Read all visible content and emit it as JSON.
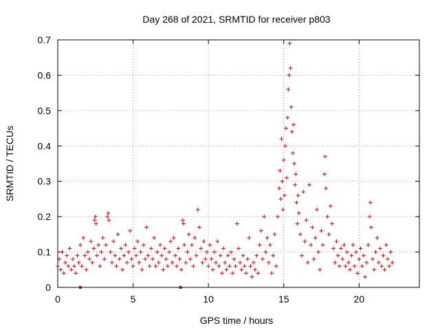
{
  "chart_data": {
    "type": "scatter",
    "title": "Day 268 of 2021, SRMTID for receiver p803",
    "xlabel": "GPS time / hours",
    "ylabel": "SRMTID / TECUs",
    "xlim": [
      0,
      24
    ],
    "ylim": [
      0,
      0.7
    ],
    "x_ticks": [
      0,
      5,
      10,
      15,
      20
    ],
    "x_tick_labels": [
      "0",
      "5",
      "10",
      "15",
      "20"
    ],
    "y_ticks": [
      0,
      0.1,
      0.2,
      0.3,
      0.4,
      0.5,
      0.6,
      0.7
    ],
    "y_tick_labels": [
      "0",
      "0.1",
      "0.2",
      "0.3",
      "0.4",
      "0.5",
      "0.6",
      "0.7"
    ],
    "grid": true,
    "marker": "+",
    "color": "#dd0000",
    "series": [
      {
        "name": "SRMTID",
        "points": [
          [
            0.0,
            0.06
          ],
          [
            0.1,
            0.08
          ],
          [
            0.2,
            0.05
          ],
          [
            0.3,
            0.1
          ],
          [
            0.4,
            0.04
          ],
          [
            0.5,
            0.07
          ],
          [
            0.6,
            0.09
          ],
          [
            0.7,
            0.06
          ],
          [
            0.8,
            0.11
          ],
          [
            0.9,
            0.05
          ],
          [
            1.0,
            0.08
          ],
          [
            1.1,
            0.06
          ],
          [
            1.2,
            0.04
          ],
          [
            1.3,
            0.09
          ],
          [
            1.4,
            0.07
          ],
          [
            1.5,
            0.12
          ],
          [
            1.6,
            0.06
          ],
          [
            1.7,
            0.14
          ],
          [
            1.8,
            0.09
          ],
          [
            1.9,
            0.05
          ],
          [
            2.0,
            0.1
          ],
          [
            2.1,
            0.08
          ],
          [
            2.2,
            0.13
          ],
          [
            2.3,
            0.07
          ],
          [
            2.4,
            0.11
          ],
          [
            2.45,
            0.19
          ],
          [
            2.5,
            0.2
          ],
          [
            2.55,
            0.18
          ],
          [
            2.6,
            0.09
          ],
          [
            2.7,
            0.12
          ],
          [
            2.8,
            0.06
          ],
          [
            2.9,
            0.1
          ],
          [
            3.0,
            0.14
          ],
          [
            3.1,
            0.08
          ],
          [
            3.2,
            0.12
          ],
          [
            3.3,
            0.2
          ],
          [
            3.35,
            0.21
          ],
          [
            3.4,
            0.19
          ],
          [
            3.5,
            0.1
          ],
          [
            3.6,
            0.07
          ],
          [
            3.7,
            0.13
          ],
          [
            3.8,
            0.09
          ],
          [
            3.9,
            0.06
          ],
          [
            4.0,
            0.15
          ],
          [
            4.1,
            0.08
          ],
          [
            4.2,
            0.11
          ],
          [
            4.3,
            0.05
          ],
          [
            4.4,
            0.09
          ],
          [
            4.5,
            0.12
          ],
          [
            4.6,
            0.07
          ],
          [
            4.7,
            0.1
          ],
          [
            4.8,
            0.16
          ],
          [
            4.9,
            0.08
          ],
          [
            5.0,
            0.06
          ],
          [
            5.1,
            0.11
          ],
          [
            5.2,
            0.09
          ],
          [
            5.3,
            0.13
          ],
          [
            5.4,
            0.07
          ],
          [
            5.5,
            0.1
          ],
          [
            5.6,
            0.05
          ],
          [
            5.7,
            0.12
          ],
          [
            5.8,
            0.08
          ],
          [
            5.9,
            0.17
          ],
          [
            6.0,
            0.09
          ],
          [
            6.1,
            0.06
          ],
          [
            6.2,
            0.11
          ],
          [
            6.3,
            0.08
          ],
          [
            6.4,
            0.14
          ],
          [
            6.5,
            0.06
          ],
          [
            6.6,
            0.1
          ],
          [
            6.7,
            0.07
          ],
          [
            6.8,
            0.12
          ],
          [
            6.9,
            0.09
          ],
          [
            7.0,
            0.05
          ],
          [
            7.1,
            0.11
          ],
          [
            7.2,
            0.08
          ],
          [
            7.3,
            0.06
          ],
          [
            7.4,
            0.1
          ],
          [
            7.5,
            0.13
          ],
          [
            7.6,
            0.07
          ],
          [
            7.7,
            0.14
          ],
          [
            7.8,
            0.09
          ],
          [
            7.9,
            0.06
          ],
          [
            8.0,
            0.11
          ],
          [
            8.1,
            0.08
          ],
          [
            8.2,
            0.05
          ],
          [
            8.3,
            0.19
          ],
          [
            8.35,
            0.18
          ],
          [
            8.4,
            0.12
          ],
          [
            8.5,
            0.07
          ],
          [
            8.6,
            0.1
          ],
          [
            8.7,
            0.15
          ],
          [
            8.8,
            0.08
          ],
          [
            8.9,
            0.12
          ],
          [
            9.0,
            0.06
          ],
          [
            9.1,
            0.14
          ],
          [
            9.2,
            0.09
          ],
          [
            9.3,
            0.22
          ],
          [
            9.4,
            0.17
          ],
          [
            9.5,
            0.11
          ],
          [
            9.6,
            0.07
          ],
          [
            9.7,
            0.13
          ],
          [
            9.8,
            0.08
          ],
          [
            9.9,
            0.1
          ],
          [
            10.0,
            0.06
          ],
          [
            10.1,
            0.12
          ],
          [
            10.2,
            0.08
          ],
          [
            10.3,
            0.05
          ],
          [
            10.4,
            0.1
          ],
          [
            10.5,
            0.07
          ],
          [
            10.6,
            0.13
          ],
          [
            10.7,
            0.06
          ],
          [
            10.8,
            0.09
          ],
          [
            10.9,
            0.04
          ],
          [
            11.0,
            0.11
          ],
          [
            11.1,
            0.07
          ],
          [
            11.2,
            0.05
          ],
          [
            11.3,
            0.09
          ],
          [
            11.4,
            0.06
          ],
          [
            11.5,
            0.1
          ],
          [
            11.6,
            0.04
          ],
          [
            11.7,
            0.08
          ],
          [
            11.8,
            0.06
          ],
          [
            11.9,
            0.18
          ],
          [
            12.0,
            0.11
          ],
          [
            12.1,
            0.07
          ],
          [
            12.2,
            0.05
          ],
          [
            12.3,
            0.09
          ],
          [
            12.4,
            0.06
          ],
          [
            12.5,
            0.04
          ],
          [
            12.6,
            0.08
          ],
          [
            12.7,
            0.14
          ],
          [
            12.8,
            0.06
          ],
          [
            12.9,
            0.03
          ],
          [
            13.0,
            0.07
          ],
          [
            13.1,
            0.05
          ],
          [
            13.2,
            0.09
          ],
          [
            13.3,
            0.04
          ],
          [
            13.4,
            0.12
          ],
          [
            13.5,
            0.16
          ],
          [
            13.6,
            0.08
          ],
          [
            13.7,
            0.2
          ],
          [
            13.8,
            0.1
          ],
          [
            13.9,
            0.14
          ],
          [
            14.0,
            0.07
          ],
          [
            14.1,
            0.12
          ],
          [
            14.2,
            0.04
          ],
          [
            14.3,
            0.09
          ],
          [
            14.4,
            0.15
          ],
          [
            14.5,
            0.06
          ],
          [
            14.6,
            0.2
          ],
          [
            14.7,
            0.28
          ],
          [
            14.75,
            0.33
          ],
          [
            14.8,
            0.25
          ],
          [
            14.85,
            0.42
          ],
          [
            14.9,
            0.3
          ],
          [
            14.95,
            0.22
          ],
          [
            15.0,
            0.36
          ],
          [
            15.05,
            0.26
          ],
          [
            15.1,
            0.4
          ],
          [
            15.15,
            0.45
          ],
          [
            15.2,
            0.31
          ],
          [
            15.25,
            0.48
          ],
          [
            15.3,
            0.56
          ],
          [
            15.35,
            0.6
          ],
          [
            15.4,
            0.69
          ],
          [
            15.45,
            0.62
          ],
          [
            15.5,
            0.51
          ],
          [
            15.55,
            0.44
          ],
          [
            15.6,
            0.38
          ],
          [
            15.65,
            0.46
          ],
          [
            15.7,
            0.35
          ],
          [
            15.75,
            0.29
          ],
          [
            15.8,
            0.32
          ],
          [
            15.85,
            0.24
          ],
          [
            15.9,
            0.18
          ],
          [
            15.95,
            0.26
          ],
          [
            16.0,
            0.21
          ],
          [
            16.1,
            0.15
          ],
          [
            16.2,
            0.09
          ],
          [
            16.3,
            0.27
          ],
          [
            16.4,
            0.13
          ],
          [
            16.5,
            0.19
          ],
          [
            16.6,
            0.07
          ],
          [
            16.7,
            0.29
          ],
          [
            16.8,
            0.12
          ],
          [
            16.9,
            0.17
          ],
          [
            17.0,
            0.08
          ],
          [
            17.1,
            0.14
          ],
          [
            17.2,
            0.22
          ],
          [
            17.3,
            0.1
          ],
          [
            17.4,
            0.05
          ],
          [
            17.5,
            0.16
          ],
          [
            17.6,
            0.12
          ],
          [
            17.7,
            0.32
          ],
          [
            17.75,
            0.37
          ],
          [
            17.8,
            0.28
          ],
          [
            17.9,
            0.2
          ],
          [
            18.0,
            0.15
          ],
          [
            18.1,
            0.23
          ],
          [
            18.2,
            0.18
          ],
          [
            18.3,
            0.11
          ],
          [
            18.4,
            0.07
          ],
          [
            18.5,
            0.13
          ],
          [
            18.6,
            0.09
          ],
          [
            18.7,
            0.06
          ],
          [
            18.8,
            0.11
          ],
          [
            18.9,
            0.08
          ],
          [
            19.0,
            0.12
          ],
          [
            19.1,
            0.06
          ],
          [
            19.2,
            0.1
          ],
          [
            19.3,
            0.07
          ],
          [
            19.4,
            0.05
          ],
          [
            19.5,
            0.09
          ],
          [
            19.6,
            0.12
          ],
          [
            19.7,
            0.06
          ],
          [
            19.8,
            0.1
          ],
          [
            19.9,
            0.04
          ],
          [
            20.0,
            0.08
          ],
          [
            20.1,
            0.11
          ],
          [
            20.2,
            0.06
          ],
          [
            20.3,
            0.09
          ],
          [
            20.4,
            0.03
          ],
          [
            20.5,
            0.07
          ],
          [
            20.6,
            0.12
          ],
          [
            20.7,
            0.2
          ],
          [
            20.75,
            0.24
          ],
          [
            20.8,
            0.17
          ],
          [
            20.9,
            0.08
          ],
          [
            21.0,
            0.05
          ],
          [
            21.1,
            0.1
          ],
          [
            21.2,
            0.14
          ],
          [
            21.3,
            0.07
          ],
          [
            21.4,
            0.11
          ],
          [
            21.5,
            0.06
          ],
          [
            21.6,
            0.09
          ],
          [
            21.7,
            0.05
          ],
          [
            21.8,
            0.12
          ],
          [
            21.9,
            0.08
          ],
          [
            22.0,
            0.06
          ],
          [
            22.1,
            0.1
          ],
          [
            22.2,
            0.07
          ]
        ]
      }
    ],
    "axis_markers_x": [
      1.5,
      8.15
    ]
  }
}
